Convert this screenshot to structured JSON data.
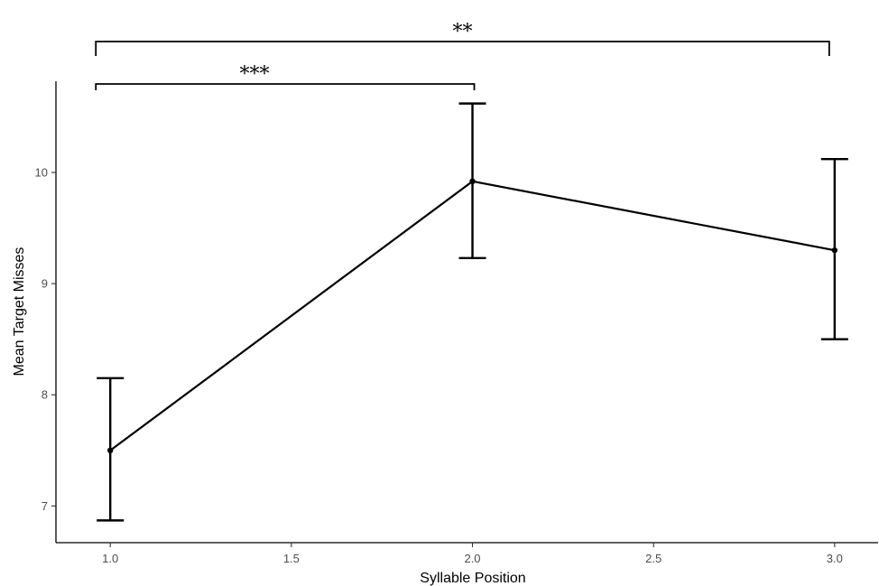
{
  "chart_data": {
    "type": "line",
    "title": "",
    "xlabel": "Syllable Position",
    "ylabel": "Mean Target Misses",
    "xlim": [
      0.85,
      3.12
    ],
    "ylim": [
      6.67,
      10.82
    ],
    "x_ticks": [
      1.0,
      1.5,
      2.0,
      2.5,
      3.0
    ],
    "x_tick_labels": [
      "1.0",
      "1.5",
      "2.0",
      "2.5",
      "3.0"
    ],
    "y_ticks": [
      7,
      8,
      9,
      10
    ],
    "y_tick_labels": [
      "7",
      "8",
      "9",
      "10"
    ],
    "grid": false,
    "legend": "none",
    "series": [
      {
        "x": [
          1.0,
          2.0,
          3.0
        ],
        "y": [
          7.5,
          9.92,
          9.3
        ],
        "error_low": [
          6.87,
          9.23,
          8.5
        ],
        "error_high": [
          8.15,
          10.62,
          10.12
        ],
        "color": "#000000"
      }
    ],
    "annotations": [
      {
        "type": "significance-bracket",
        "x_start": 1.0,
        "x_end": 2.0,
        "label": "***"
      },
      {
        "type": "significance-bracket",
        "x_start": 1.0,
        "x_end": 3.0,
        "label": "**"
      }
    ]
  }
}
